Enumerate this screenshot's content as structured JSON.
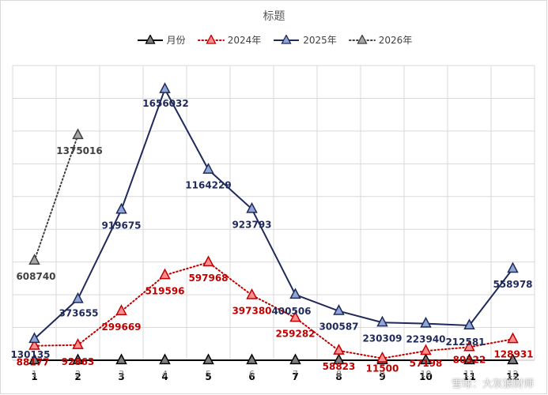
{
  "chart_data": {
    "type": "line",
    "title": "标题",
    "x": [
      "1",
      "2",
      "3",
      "4",
      "5",
      "6",
      "7",
      "8",
      "9",
      "10",
      "11",
      "12"
    ],
    "ylim": [
      0,
      1800000
    ],
    "grid": true,
    "legend_position": "top",
    "series": [
      {
        "name": "月份",
        "color": "#000000",
        "marker_fill": "#7f7f7f",
        "style": "solid",
        "values": [
          1,
          2,
          3,
          4,
          5,
          6,
          7,
          8,
          9,
          10,
          11,
          12
        ],
        "labels": [
          "1",
          "2",
          "3",
          "4",
          "5",
          "6",
          "7",
          "8",
          "9",
          "10",
          "11",
          "12"
        ]
      },
      {
        "name": "2024年",
        "color": "#c00000",
        "marker_fill": "#ff8f8f",
        "style": "dotted",
        "values": [
          88177,
          92863,
          299669,
          519596,
          597968,
          397380,
          259282,
          58823,
          11500,
          57198,
          80322,
          128931
        ],
        "labels": [
          "88177",
          "92863",
          "299669",
          "519596",
          "597968",
          "397380",
          "259282",
          "58823",
          "11500",
          "57198",
          "80322",
          "128931"
        ]
      },
      {
        "name": "2025年",
        "color": "#1f2a5a",
        "marker_fill": "#8fa6d6",
        "style": "solid",
        "values": [
          130135,
          373655,
          919675,
          1656032,
          1164229,
          923793,
          400506,
          300587,
          230309,
          223940,
          212581,
          558978
        ],
        "labels": [
          "130135",
          "373655",
          "919675",
          "1656032",
          "1164229",
          "923793",
          "400506",
          "300587",
          "230309",
          "223940",
          "212581",
          "558978"
        ]
      },
      {
        "name": "2026年",
        "color": "#404040",
        "marker_fill": "#a6a6a6",
        "style": "dotted",
        "values": [
          608740,
          1375016,
          null,
          null,
          null,
          null,
          null,
          null,
          null,
          null,
          null,
          null
        ],
        "labels": [
          "608740",
          "1375016"
        ]
      }
    ]
  },
  "watermark": "雪球：大灰狼财师"
}
